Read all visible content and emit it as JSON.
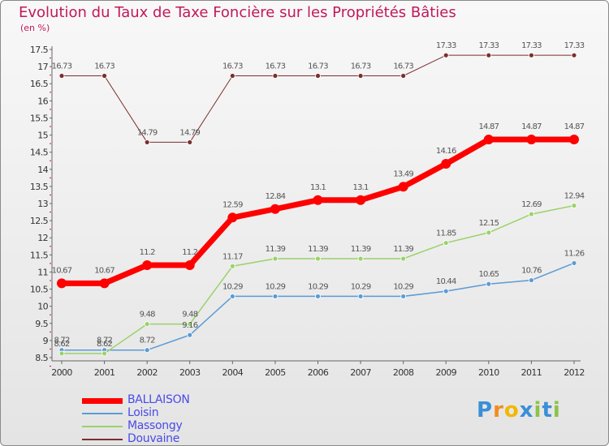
{
  "chart_data": {
    "type": "line",
    "title": "Evolution du Taux de Taxe Foncière sur les Propriétés Bâties",
    "unit_label": "(en %)",
    "x": [
      "2000",
      "2001",
      "2002",
      "2003",
      "2004",
      "2005",
      "2006",
      "2007",
      "2008",
      "2009",
      "2010",
      "2011",
      "2012"
    ],
    "yticks": [
      "8.5",
      "9",
      "9.5",
      "10",
      "10.5",
      "11",
      "11.5",
      "12",
      "12.5",
      "13",
      "13.5",
      "14",
      "14.5",
      "15",
      "15.5",
      "16",
      "16.5",
      "17",
      "17.5"
    ],
    "ylim": [
      8.5,
      17.5
    ],
    "grid": false,
    "legend_position": "bottom-left",
    "series": [
      {
        "name": "BALLAISON",
        "color": "#ff0000",
        "values": [
          10.67,
          10.67,
          11.2,
          11.2,
          12.59,
          12.84,
          13.1,
          13.1,
          13.49,
          14.16,
          14.87,
          14.87,
          14.87
        ],
        "labels": [
          "10.67",
          "10.67",
          "11.2",
          "11.2",
          "12.59",
          "12.84",
          "13.1",
          "13.1",
          "13.49",
          "14.16",
          "14.87",
          "14.87",
          "14.87"
        ]
      },
      {
        "name": "Loisin",
        "color": "#5b9bd5",
        "values": [
          8.72,
          8.72,
          8.72,
          9.16,
          10.29,
          10.29,
          10.29,
          10.29,
          10.29,
          10.44,
          10.65,
          10.76,
          11.26
        ],
        "labels": [
          "8.72",
          "8.72",
          "8.72",
          "9.16",
          "10.29",
          "10.29",
          "10.29",
          "10.29",
          "10.29",
          "10.44",
          "10.65",
          "10.76",
          "11.26"
        ]
      },
      {
        "name": "Massongy",
        "color": "#9ad26a",
        "values": [
          8.62,
          8.62,
          9.48,
          9.48,
          11.17,
          11.39,
          11.39,
          11.39,
          11.39,
          11.85,
          12.15,
          12.69,
          12.94
        ],
        "labels": [
          "8.62",
          "8.62",
          "9.48",
          "9.48",
          "11.17",
          "11.39",
          "11.39",
          "11.39",
          "11.39",
          "11.85",
          "12.15",
          "12.69",
          "12.94"
        ]
      },
      {
        "name": "Douvaine",
        "color": "#7b2f2f",
        "values": [
          16.73,
          16.73,
          14.79,
          14.79,
          16.73,
          16.73,
          16.73,
          16.73,
          16.73,
          17.33,
          17.33,
          17.33,
          17.33
        ],
        "labels": [
          "16.73",
          "16.73",
          "14.79",
          "14.79",
          "16.73",
          "16.73",
          "16.73",
          "16.73",
          "16.73",
          "17.33",
          "17.33",
          "17.33",
          "17.33"
        ]
      }
    ]
  },
  "logo": {
    "letters": [
      "P",
      "r",
      "o",
      "x",
      "i",
      "t",
      "i"
    ],
    "colors": [
      "#3a8fd6",
      "#f28c1e",
      "#f2b705",
      "#3a8fd6",
      "#8bc34a",
      "#3a8fd6",
      "#8bc34a"
    ]
  }
}
